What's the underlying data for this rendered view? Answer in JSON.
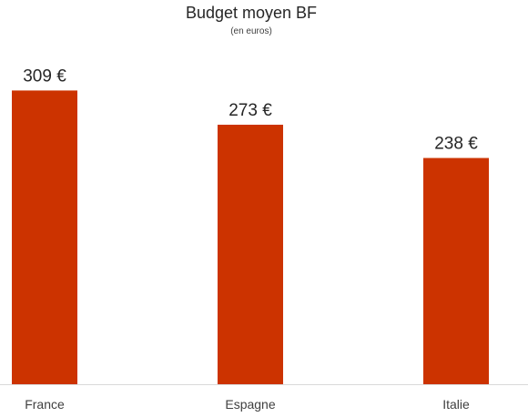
{
  "chart_data": {
    "type": "bar",
    "title": "Budget moyen BF",
    "subtitle": "(en euros)",
    "categories": [
      "France",
      "Espagne",
      "Italie"
    ],
    "values": [
      309,
      273,
      238
    ],
    "value_labels": [
      "309 €",
      "273 €",
      "238 €"
    ],
    "xlabel": "",
    "ylabel": "",
    "ylim": [
      0,
      320
    ],
    "grid": false,
    "legend": "none",
    "bar_color": "#CC3300"
  }
}
